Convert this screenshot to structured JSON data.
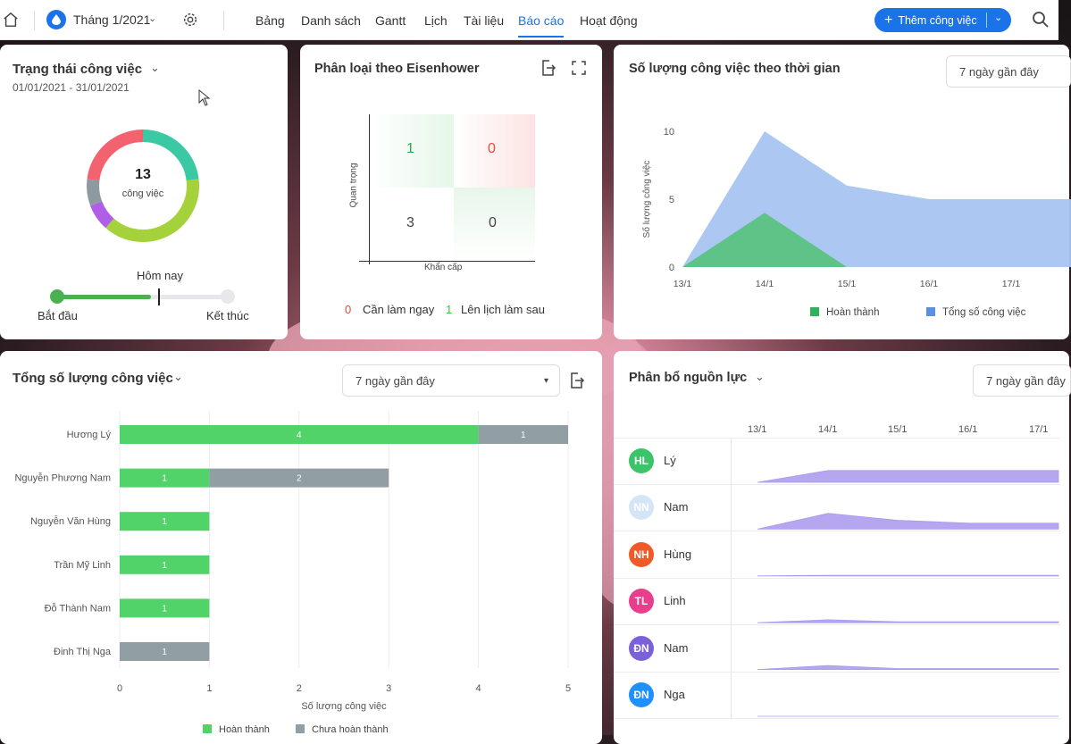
{
  "topbar": {
    "month": "Tháng 1/2021",
    "nav": [
      "Bảng",
      "Danh sách",
      "Gantt",
      "Lịch",
      "Tài liệu",
      "Báo cáo",
      "Hoạt động"
    ],
    "active": "Báo cáo",
    "add_task": "Thêm công việc"
  },
  "status_card": {
    "title": "Trạng thái công việc",
    "date_range": "01/01/2021 - 31/01/2021",
    "total": "13",
    "total_unit": "công việc",
    "today": "Hôm nay",
    "start": "Bắt đầu",
    "end": "Kết thúc",
    "progress": 0.55
  },
  "eisenhower": {
    "title": "Phân loại theo Eisenhower",
    "axis_y": "Quan trọng",
    "axis_x": "Khẩn cấp",
    "cells": {
      "tl": "1",
      "tr": "0",
      "bl": "3",
      "br": "0"
    },
    "legend": [
      {
        "count": "0",
        "label": "Cần làm ngay",
        "color": "#e74c3c"
      },
      {
        "count": "1",
        "label": "Lên lịch làm sau",
        "color": "#2ecc40"
      }
    ]
  },
  "time_card": {
    "title": "Số lượng công việc theo thời gian",
    "range": "7 ngày gần đây"
  },
  "total_card": {
    "title": "Tổng số lượng công việc",
    "range": "7 ngày gần đây"
  },
  "resource_card": {
    "title": "Phân bổ nguồn lực",
    "range": "7 ngày gần đây",
    "dates": [
      "13/1",
      "14/1",
      "15/1",
      "16/1",
      "17/1"
    ],
    "people": [
      {
        "initials": "HL",
        "name": "Lý",
        "color": "#3cc46a"
      },
      {
        "initials": "NN",
        "name": "Nam",
        "color": "#d4e6f5"
      },
      {
        "initials": "NH",
        "name": "Hùng",
        "color": "#f05a28"
      },
      {
        "initials": "TL",
        "name": "Linh",
        "color": "#e83e8c"
      },
      {
        "initials": "ĐN",
        "name": "Nam",
        "color": "#7b61d9"
      },
      {
        "initials": "ĐN",
        "name": "Nga",
        "color": "#1e90ff"
      }
    ]
  },
  "chart_data": [
    {
      "type": "area",
      "title": "Số lượng công việc theo thời gian",
      "ylabel": "Số lượng công việc",
      "x": [
        "13/1",
        "14/1",
        "15/1",
        "16/1",
        "17/1"
      ],
      "ylim": [
        0,
        10
      ],
      "yticks": [
        0,
        5,
        10
      ],
      "series": [
        {
          "name": "Tổng số công việc",
          "color": "#a9c4f2",
          "values": [
            0,
            10,
            6,
            5,
            5
          ]
        },
        {
          "name": "Hoàn thành",
          "color": "#57c17b",
          "values": [
            0,
            4,
            0,
            0,
            0
          ]
        }
      ]
    },
    {
      "type": "bar",
      "title": "Tổng số lượng công việc",
      "xlabel": "Số lượng công việc",
      "xlim": [
        0,
        5
      ],
      "xticks": [
        0,
        1,
        2,
        3,
        4,
        5
      ],
      "categories": [
        "Hương Lý",
        "Nguyễn Phương Nam",
        "Nguyễn Văn Hùng",
        "Trần Mỹ Linh",
        "Đỗ Thành Nam",
        "Đinh Thị Nga"
      ],
      "series": [
        {
          "name": "Hoàn thành",
          "color": "#52d36a",
          "values": [
            4,
            1,
            1,
            1,
            1,
            0
          ]
        },
        {
          "name": "Chưa hoàn thành",
          "color": "#919ea3",
          "values": [
            1,
            2,
            0,
            0,
            0,
            1
          ]
        }
      ]
    },
    {
      "type": "pie",
      "title": "Trạng thái công việc",
      "values": [
        3,
        5,
        1,
        1,
        3
      ],
      "colors": [
        "#3ac9a3",
        "#a5d23a",
        "#b15ee6",
        "#8f9aa0",
        "#f2636f"
      ]
    }
  ]
}
